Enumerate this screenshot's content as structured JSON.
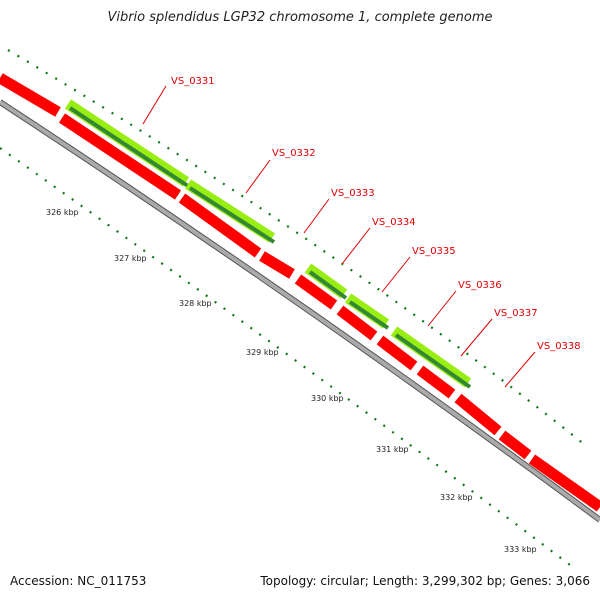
{
  "title": "Vibrio splendidus LGP32 chromosome 1, complete genome",
  "footer": {
    "accession": "Accession: NC_011753",
    "topology": "Topology: circular; Length: 3,299,302 bp; Genes: 3,066"
  },
  "ticks": [
    "326 kbp",
    "327 kbp",
    "328 kbp",
    "329 kbp",
    "330 kbp",
    "331 kbp",
    "332 kbp",
    "333 kbp"
  ],
  "genes": [
    "VS_0331",
    "VS_0332",
    "VS_0333",
    "VS_0334",
    "VS_0335",
    "VS_0336",
    "VS_0337",
    "VS_0338"
  ],
  "colors": {
    "cds_forward": "#ff0000",
    "cds_reverse_light": "#99ee11",
    "cds_reverse_dark": "#338833",
    "backbone": "#888888",
    "tick_marks": "#117711",
    "gene_label": "#dd0000"
  }
}
